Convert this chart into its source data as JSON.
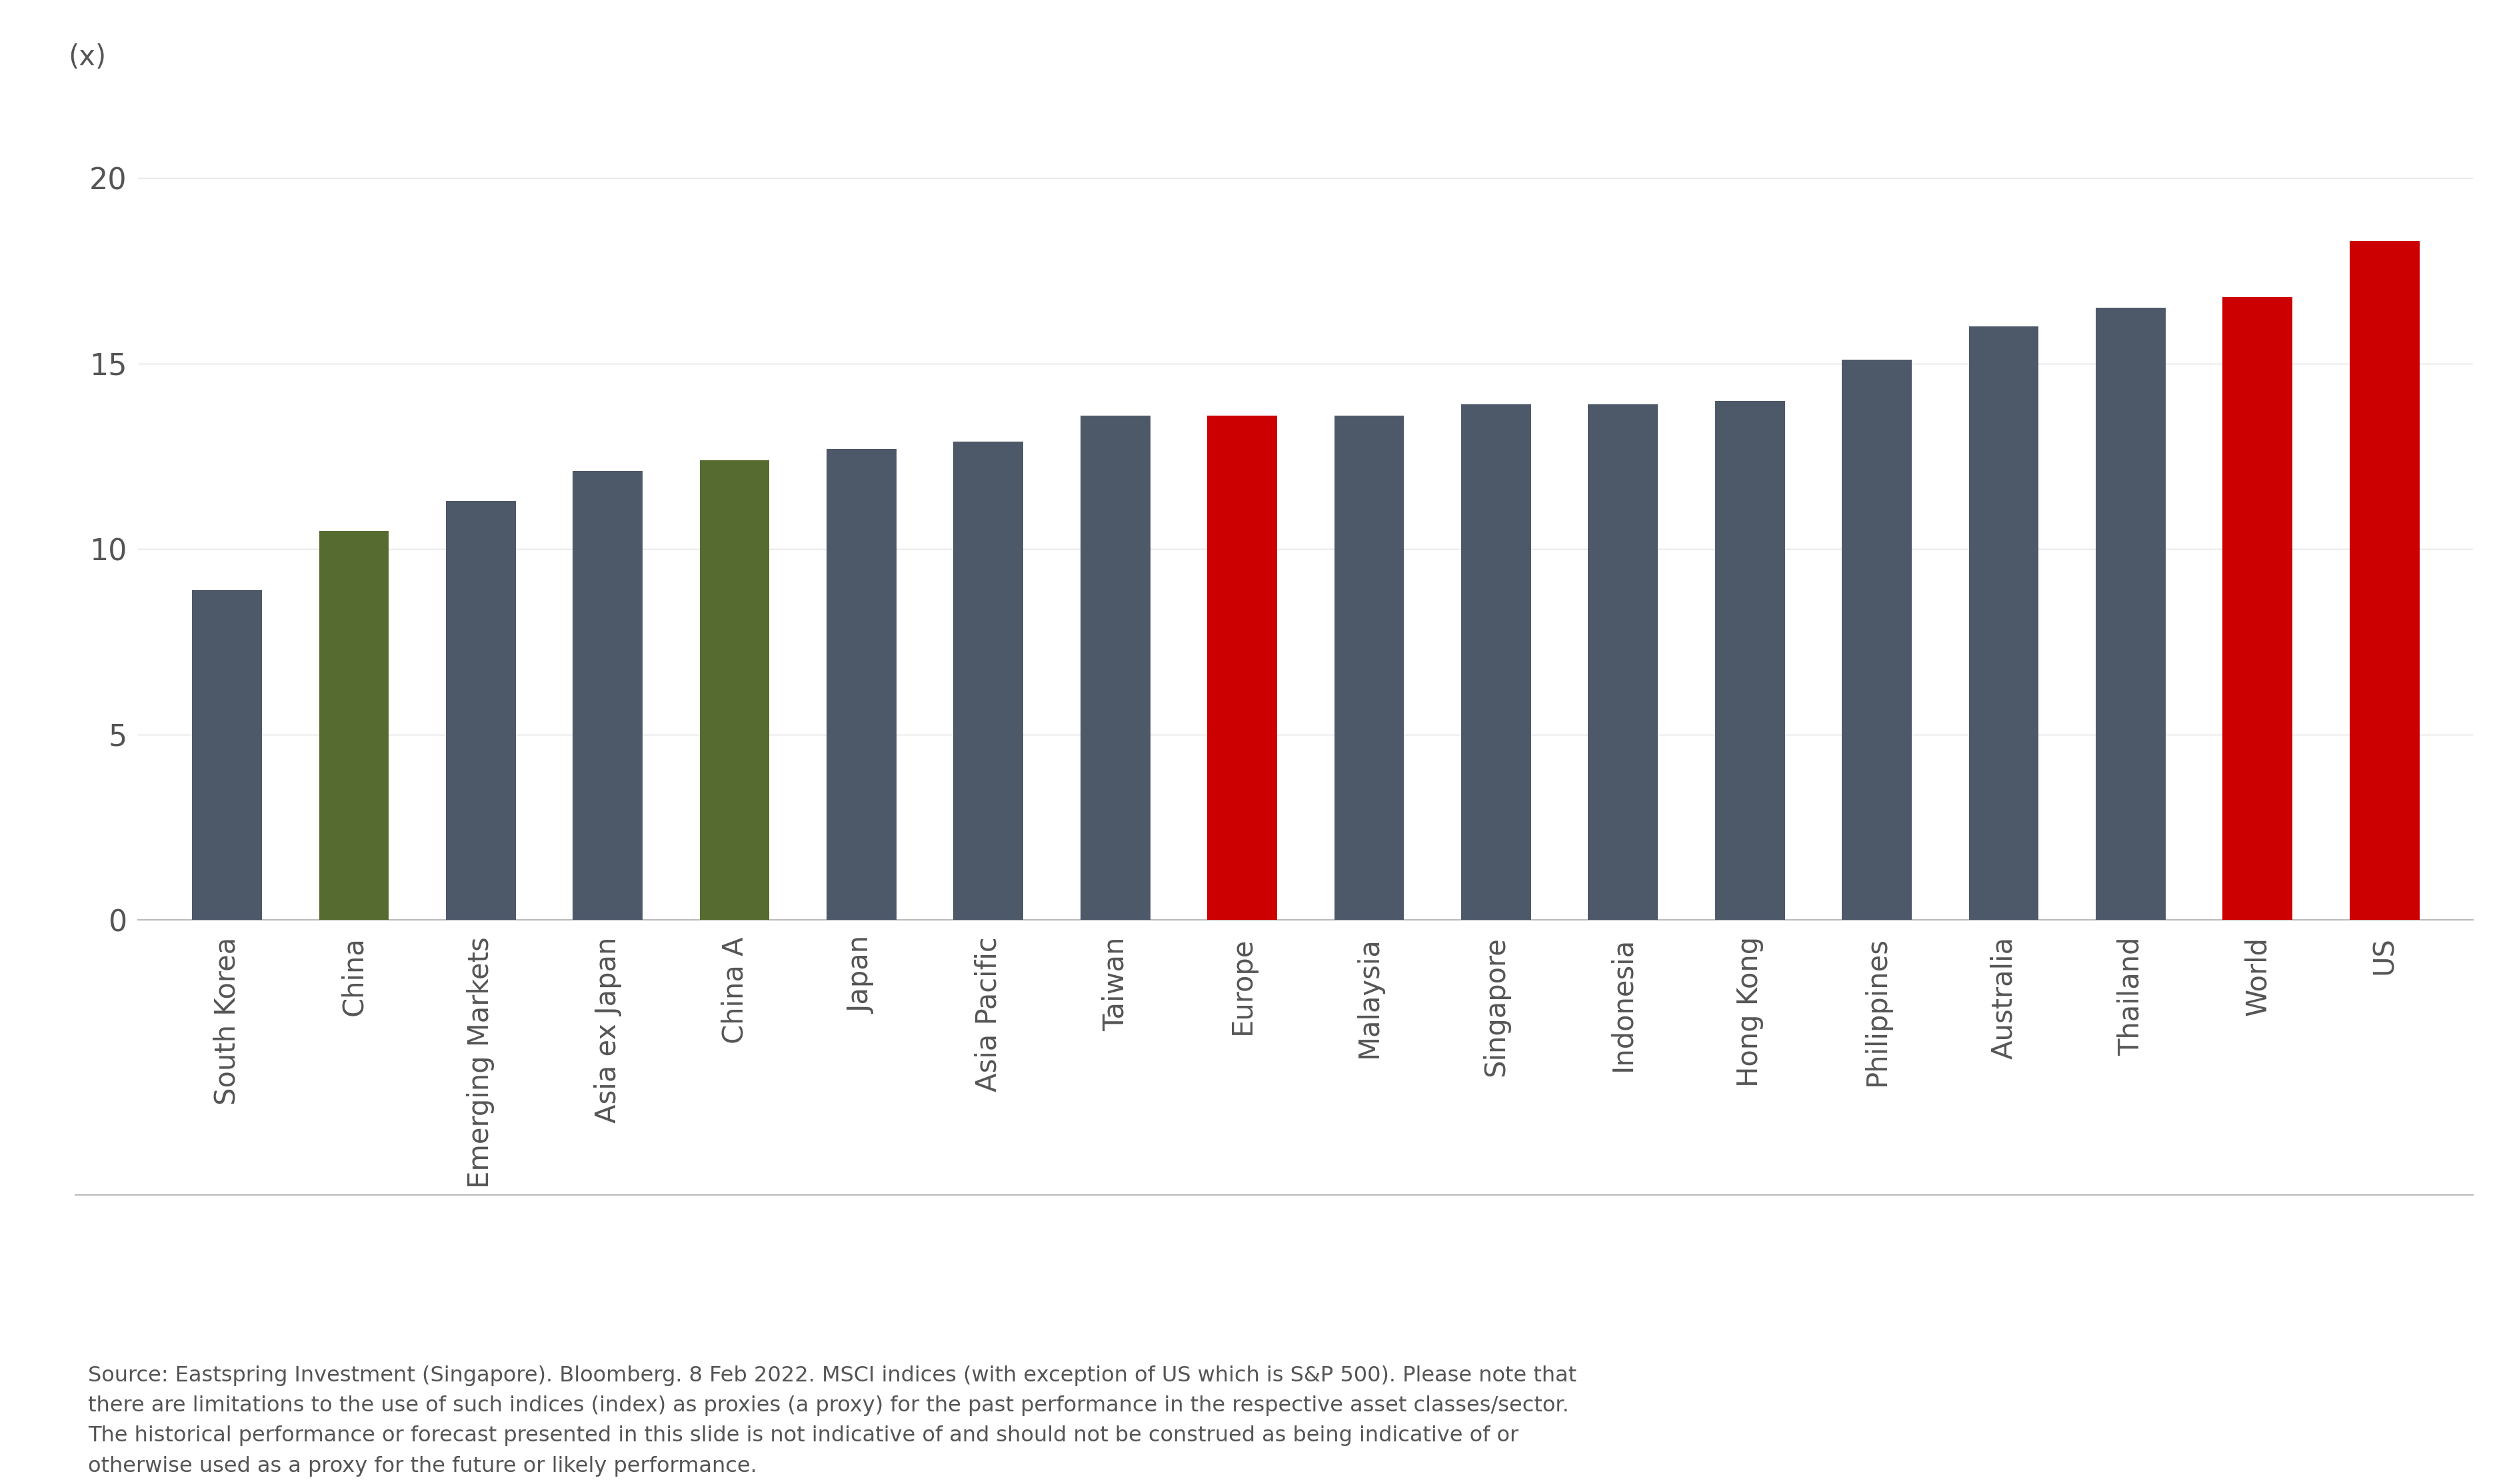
{
  "categories": [
    "South Korea",
    "China",
    "Emerging Markets",
    "Asia ex Japan",
    "China A",
    "Japan",
    "Asia Pacific",
    "Taiwan",
    "Europe",
    "Malaysia",
    "Singapore",
    "Indonesia",
    "Hong Kong",
    "Philippines",
    "Australia",
    "Thailand",
    "World",
    "US"
  ],
  "values": [
    8.9,
    10.5,
    11.3,
    12.1,
    12.4,
    12.7,
    12.9,
    13.6,
    13.6,
    13.6,
    13.9,
    13.9,
    14.0,
    15.1,
    16.0,
    16.5,
    16.8,
    18.3
  ],
  "bar_colors": [
    "#4d5969",
    "#556b2f",
    "#4d5969",
    "#4d5969",
    "#556b2f",
    "#4d5969",
    "#4d5969",
    "#4d5969",
    "#cc0000",
    "#4d5969",
    "#4d5969",
    "#4d5969",
    "#4d5969",
    "#4d5969",
    "#4d5969",
    "#4d5969",
    "#cc0000",
    "#cc0000"
  ],
  "ylabel_text": "(x)",
  "yticks": [
    0,
    5,
    10,
    15,
    20
  ],
  "ylim": [
    0,
    22
  ],
  "background_color": "#ffffff",
  "source_text": "Source: Eastspring Investment (Singapore). Bloomberg. 8 Feb 2022. MSCI indices (with exception of US which is S&P 500). Please note that\nthere are limitations to the use of such indices (index) as proxies (a proxy) for the past performance in the respective asset classes/sector.\nThe historical performance or forecast presented in this slide is not indicative of and should not be construed as being indicative of or\notherwise used as a proxy for the future or likely performance.",
  "axis_label_fontsize": 30,
  "tick_fontsize": 32,
  "source_fontsize": 23,
  "ylabel_fontsize": 30,
  "text_color": "#555555",
  "grid_color": "#e0e0e0",
  "spine_color": "#bbbbbb",
  "bar_width": 0.55
}
